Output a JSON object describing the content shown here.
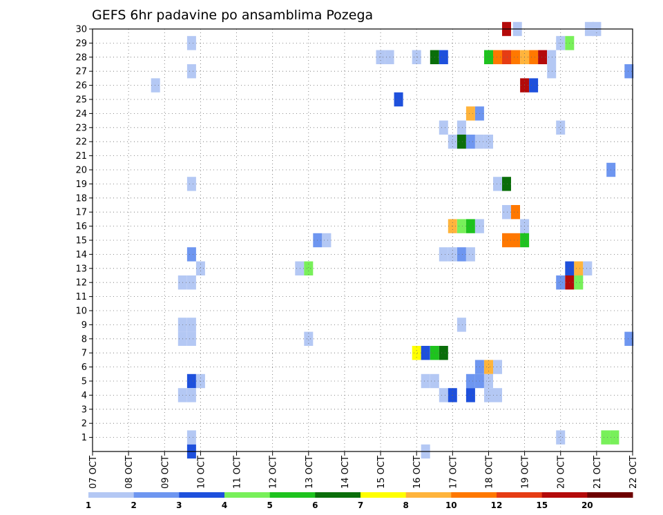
{
  "chart_data": {
    "type": "heatmap",
    "title": "GEFS 6hr padavine po ansamblima Pozega",
    "xlabel": "",
    "ylabel": "",
    "x_tick_labels": [
      "07 OCT",
      "08 OCT",
      "09 OCT",
      "10 OCT",
      "11 OCT",
      "12 OCT",
      "13 OCT",
      "14 OCT",
      "15 OCT",
      "16 OCT",
      "17 OCT",
      "18 OCT",
      "19 OCT",
      "20 OCT",
      "21 OCT",
      "22 OCT"
    ],
    "y_tick_labels": [
      "1",
      "2",
      "3",
      "4",
      "5",
      "6",
      "7",
      "8",
      "9",
      "10",
      "11",
      "12",
      "13",
      "14",
      "15",
      "16",
      "17",
      "18",
      "19",
      "20",
      "21",
      "22",
      "23",
      "24",
      "25",
      "26",
      "27",
      "28",
      "29",
      "30"
    ],
    "x_range_days": [
      0,
      15
    ],
    "y_range_members": [
      0,
      30
    ],
    "grid": true,
    "legend": {
      "position": "bottom",
      "labels": [
        "1",
        "2",
        "3",
        "4",
        "5",
        "6",
        "7",
        "8",
        "10",
        "12",
        "15",
        "20"
      ],
      "colors": [
        "#b4c8f4",
        "#6e96f0",
        "#1e50dc",
        "#78f05a",
        "#1ec31e",
        "#0a6e0a",
        "#ffff00",
        "#ffb43c",
        "#ff7800",
        "#e63c14",
        "#b40a0a",
        "#6e0000"
      ]
    },
    "cells": [
      [
        11.5,
        30,
        10
      ],
      [
        11.8,
        30,
        0
      ],
      [
        13.8,
        30,
        0
      ],
      [
        14.0,
        30,
        0
      ],
      [
        2.75,
        29,
        0
      ],
      [
        13.0,
        29,
        0
      ],
      [
        13.25,
        29,
        3
      ],
      [
        8.0,
        28,
        0
      ],
      [
        8.25,
        28,
        0
      ],
      [
        9.0,
        28,
        0
      ],
      [
        9.5,
        28,
        5
      ],
      [
        9.75,
        28,
        2
      ],
      [
        11.0,
        28,
        4
      ],
      [
        11.25,
        28,
        8
      ],
      [
        11.5,
        28,
        9
      ],
      [
        11.75,
        28,
        8
      ],
      [
        12.0,
        28,
        7
      ],
      [
        12.25,
        28,
        8
      ],
      [
        12.5,
        28,
        10
      ],
      [
        12.75,
        28,
        0
      ],
      [
        2.75,
        27,
        0
      ],
      [
        12.75,
        27,
        0
      ],
      [
        14.9,
        27,
        1
      ],
      [
        1.75,
        26,
        0
      ],
      [
        12.0,
        26,
        10
      ],
      [
        12.25,
        26,
        2
      ],
      [
        8.5,
        25,
        2
      ],
      [
        10.5,
        24,
        7
      ],
      [
        10.75,
        24,
        1
      ],
      [
        9.75,
        23,
        0
      ],
      [
        10.25,
        23,
        0
      ],
      [
        13.0,
        23,
        0
      ],
      [
        10.0,
        22,
        0
      ],
      [
        10.25,
        22,
        5
      ],
      [
        10.5,
        22,
        1
      ],
      [
        10.75,
        22,
        0
      ],
      [
        11.0,
        22,
        0
      ],
      [
        14.4,
        20,
        1
      ],
      [
        2.75,
        19,
        0
      ],
      [
        11.25,
        19,
        0
      ],
      [
        11.5,
        19,
        5
      ],
      [
        11.5,
        17,
        0
      ],
      [
        11.75,
        17,
        8
      ],
      [
        10.0,
        16,
        7
      ],
      [
        10.25,
        16,
        3
      ],
      [
        10.5,
        16,
        4
      ],
      [
        10.75,
        16,
        0
      ],
      [
        12.0,
        16,
        0
      ],
      [
        6.25,
        15,
        1
      ],
      [
        6.5,
        15,
        0
      ],
      [
        11.5,
        15,
        8
      ],
      [
        11.75,
        15,
        8
      ],
      [
        12.0,
        15,
        4
      ],
      [
        2.75,
        14,
        1
      ],
      [
        9.75,
        14,
        0
      ],
      [
        10.0,
        14,
        0
      ],
      [
        10.25,
        14,
        1
      ],
      [
        10.5,
        14,
        0
      ],
      [
        3.0,
        13,
        0
      ],
      [
        5.75,
        13,
        0
      ],
      [
        6.0,
        13,
        3
      ],
      [
        13.25,
        13,
        2
      ],
      [
        13.5,
        13,
        7
      ],
      [
        13.75,
        13,
        0
      ],
      [
        2.5,
        12,
        0
      ],
      [
        2.75,
        12,
        0
      ],
      [
        13.0,
        12,
        1
      ],
      [
        13.25,
        12,
        10
      ],
      [
        13.5,
        12,
        3
      ],
      [
        2.5,
        9,
        0
      ],
      [
        2.75,
        9,
        0
      ],
      [
        10.25,
        9,
        0
      ],
      [
        2.5,
        8,
        0
      ],
      [
        2.75,
        8,
        0
      ],
      [
        6.0,
        8,
        0
      ],
      [
        14.9,
        8,
        1
      ],
      [
        9.0,
        7,
        6
      ],
      [
        9.25,
        7,
        2
      ],
      [
        9.5,
        7,
        4
      ],
      [
        9.75,
        7,
        5
      ],
      [
        10.75,
        6,
        1
      ],
      [
        11.0,
        6,
        7
      ],
      [
        11.25,
        6,
        0
      ],
      [
        2.75,
        5,
        2
      ],
      [
        3.0,
        5,
        0
      ],
      [
        9.25,
        5,
        0
      ],
      [
        9.5,
        5,
        0
      ],
      [
        10.5,
        5,
        1
      ],
      [
        10.75,
        5,
        1
      ],
      [
        11.0,
        5,
        0
      ],
      [
        2.5,
        4,
        0
      ],
      [
        2.75,
        4,
        0
      ],
      [
        9.75,
        4,
        0
      ],
      [
        10.0,
        4,
        2
      ],
      [
        10.5,
        4,
        2
      ],
      [
        11.0,
        4,
        0
      ],
      [
        11.25,
        4,
        0
      ],
      [
        2.75,
        1,
        0
      ],
      [
        13.0,
        1,
        0
      ],
      [
        14.25,
        1,
        3
      ],
      [
        14.5,
        1,
        3
      ],
      [
        2.75,
        0,
        2
      ],
      [
        9.25,
        0,
        0
      ]
    ]
  }
}
